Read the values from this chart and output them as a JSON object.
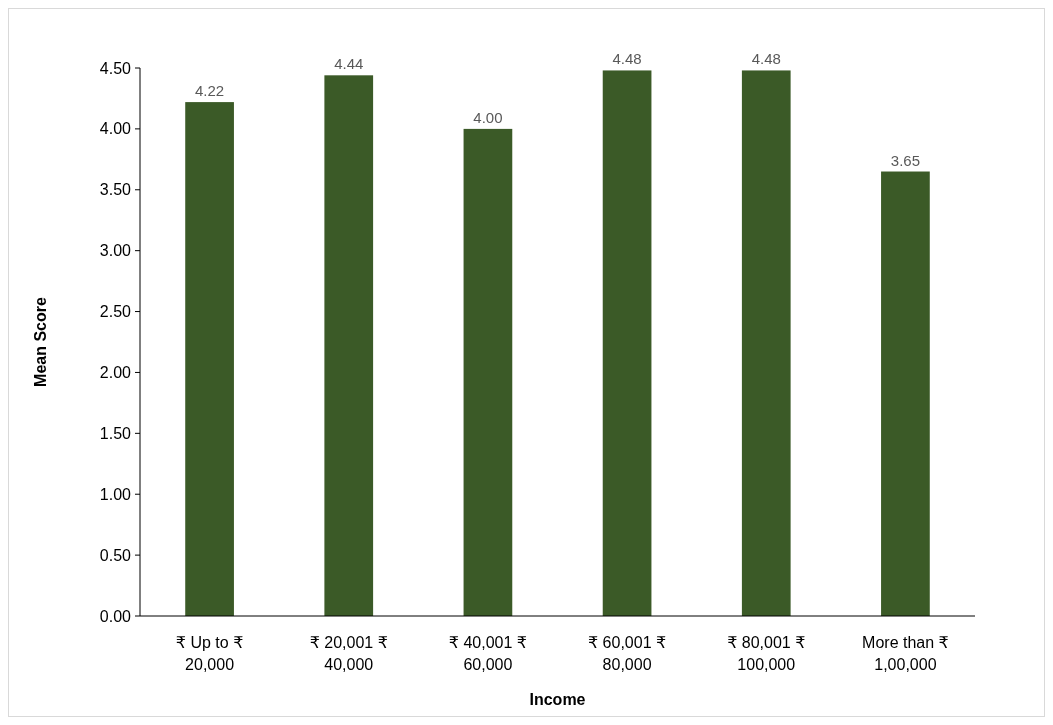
{
  "chart_data": {
    "type": "bar",
    "xlabel": "Income",
    "ylabel": "Mean Score",
    "categories": [
      "₹ Up to ₹ 20,000",
      "₹ 20,001 ₹ 40,000",
      "₹ 40,001 ₹ 60,000",
      "₹ 60,001 ₹ 80,000",
      "₹ 80,001 ₹ 100,000",
      "More than ₹ 1,00,000"
    ],
    "values": [
      4.22,
      4.44,
      4.0,
      4.48,
      4.48,
      3.65
    ],
    "color": "#3b5a27",
    "ylim": [
      0,
      4.5
    ],
    "yticks": [
      {
        "value": 0,
        "label": "0.00"
      },
      {
        "value": 0.5,
        "label": "0.50"
      },
      {
        "value": 1,
        "label": "1.00"
      },
      {
        "value": 1.5,
        "label": "1.50"
      },
      {
        "value": 2,
        "label": "2.00"
      },
      {
        "value": 2.5,
        "label": "2.50"
      },
      {
        "value": 3,
        "label": "3.00"
      },
      {
        "value": 3.5,
        "label": "3.50"
      },
      {
        "value": 4,
        "label": "4.00"
      },
      {
        "value": 4.5,
        "label": "4.50"
      }
    ],
    "value_labels": [
      "4.22",
      "4.44",
      "4.00",
      "4.48",
      "4.48",
      "3.65"
    ],
    "grid": false
  }
}
